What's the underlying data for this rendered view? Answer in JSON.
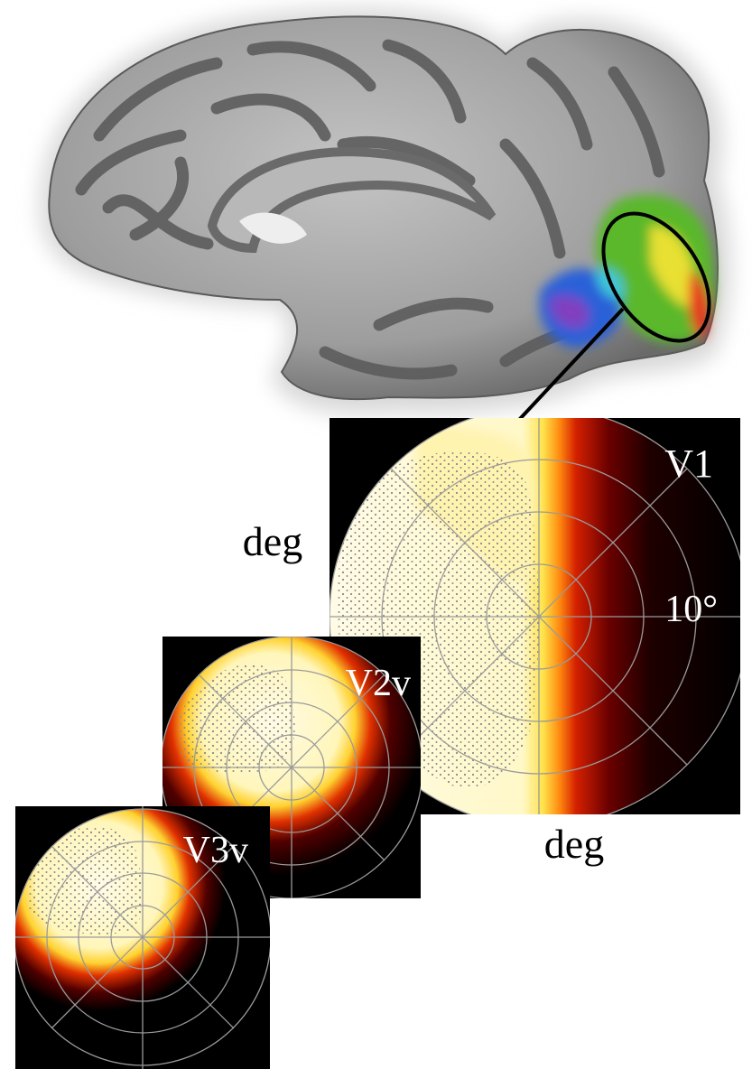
{
  "labels": {
    "v1": "V1",
    "v2v": "V2v",
    "v3v": "V3v",
    "deg_left": "deg",
    "deg_bottom": "deg",
    "eccentricity": "10°"
  }
}
